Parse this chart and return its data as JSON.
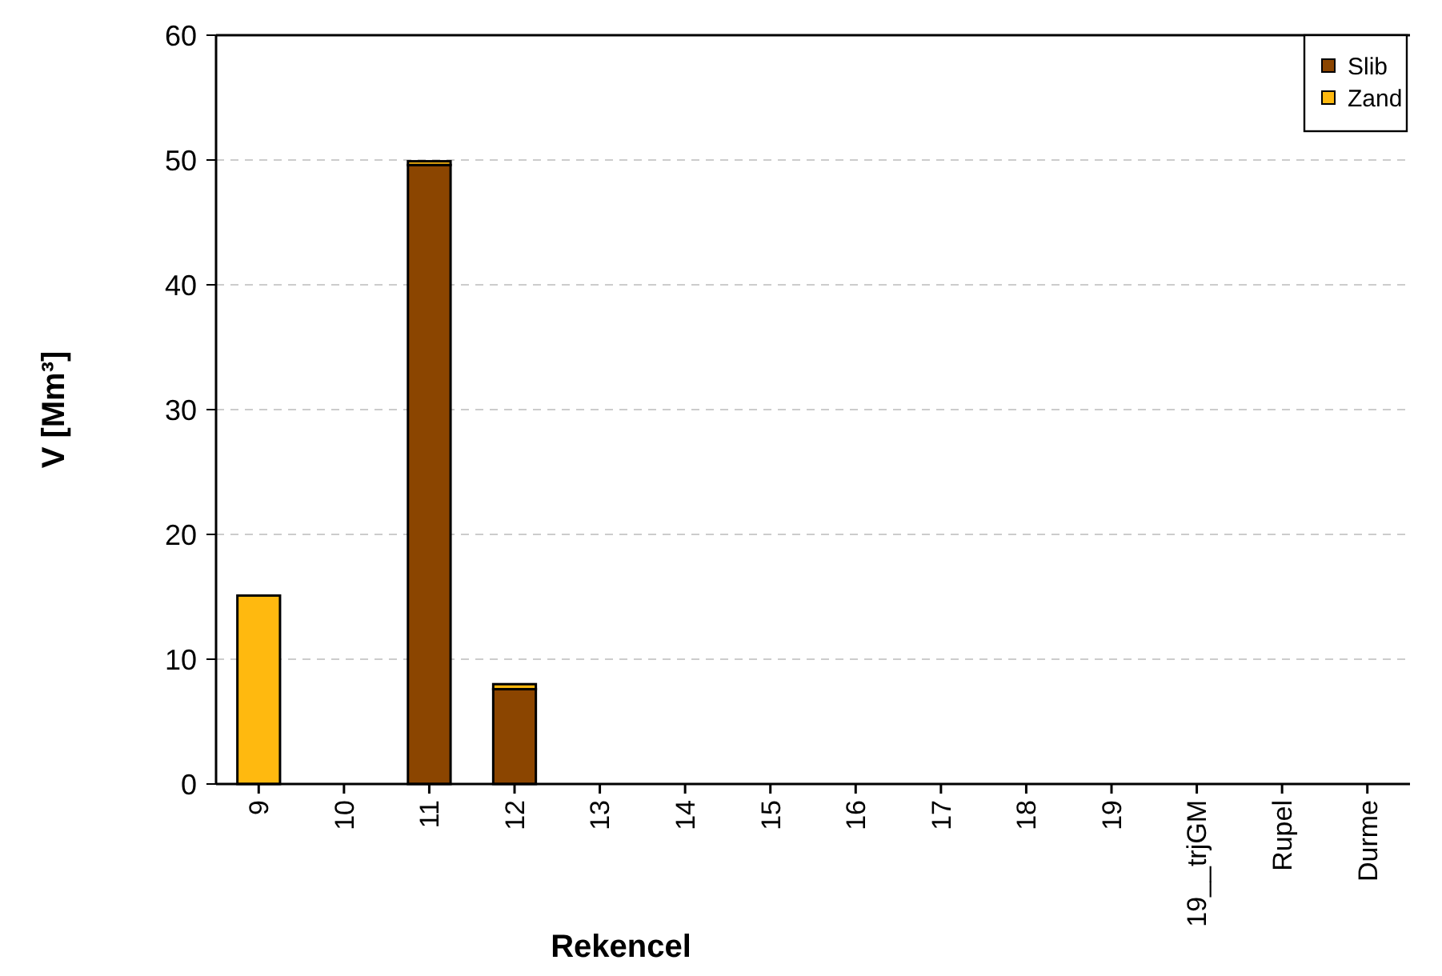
{
  "chart_data": {
    "type": "bar",
    "stacked": true,
    "xlabel": "Rekencel",
    "ylabel": "V [Mm³]",
    "categories": [
      "9",
      "10",
      "11",
      "12",
      "13",
      "14",
      "15",
      "16",
      "17",
      "18",
      "19",
      "19__trjGM",
      "Rupel",
      "Durme"
    ],
    "series": [
      {
        "name": "Slib",
        "color": "#8b4500",
        "values": [
          0,
          0,
          49.6,
          7.6,
          0,
          0,
          0,
          0,
          0,
          0,
          0,
          0,
          0,
          0
        ]
      },
      {
        "name": "Zand",
        "color": "#ffb90f",
        "values": [
          15.1,
          0,
          0.3,
          0.4,
          0,
          0,
          0,
          0,
          0,
          0,
          0,
          0,
          0,
          0
        ]
      }
    ],
    "ylim": [
      0,
      60
    ],
    "yticks": [
      0,
      10,
      20,
      30,
      40,
      50,
      60
    ],
    "grid": "y",
    "legend": "top right"
  }
}
